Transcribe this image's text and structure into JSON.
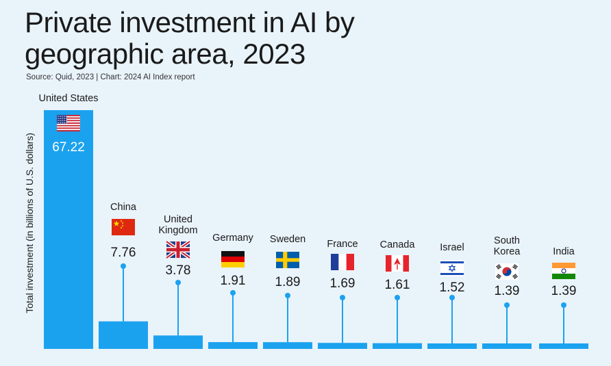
{
  "title_line1": "Private investment in AI by",
  "title_line2": "geographic area, 2023",
  "source": "Source: Quid, 2023 | Chart: 2024 AI Index report",
  "colors": {
    "bar": "#1ba2ef",
    "background": "#e9f3fa",
    "text": "#1a1a1a"
  },
  "chart_data": {
    "type": "bar",
    "title": "Private investment in AI by geographic area, 2023",
    "xlabel": "",
    "ylabel": "Total investment (in billions of U.S. dollars)",
    "ylim": [
      0,
      67.22
    ],
    "grid": false,
    "categories": [
      "United States",
      "China",
      "United Kingdom",
      "Germany",
      "Sweden",
      "France",
      "Canada",
      "Israel",
      "South Korea",
      "India"
    ],
    "values": [
      67.22,
      7.76,
      3.78,
      1.91,
      1.89,
      1.69,
      1.61,
      1.52,
      1.39,
      1.39
    ],
    "value_labels": [
      "67.22",
      "7.76",
      "3.78",
      "1.91",
      "1.89",
      "1.69",
      "1.61",
      "1.52",
      "1.39",
      "1.39"
    ],
    "flags": [
      "us-flag-icon",
      "china-flag-icon",
      "uk-flag-icon",
      "germany-flag-icon",
      "sweden-flag-icon",
      "france-flag-icon",
      "canada-flag-icon",
      "israel-flag-icon",
      "south-korea-flag-icon",
      "india-flag-icon"
    ]
  }
}
